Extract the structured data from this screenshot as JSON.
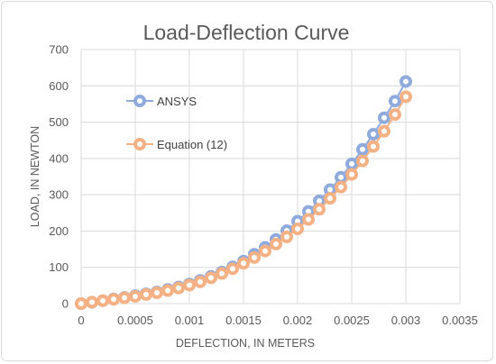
{
  "chart_data": {
    "type": "line",
    "title": "Load-Deflection Curve",
    "xlabel": "DEFLECTION, IN METERS",
    "ylabel": "LOAD, IN NEWTON",
    "xlim": [
      0,
      0.0035
    ],
    "ylim": [
      0,
      700
    ],
    "xticks": [
      "0",
      "0.0005",
      "0.001",
      "0.0015",
      "0.002",
      "0.0025",
      "0.003",
      "0.0035"
    ],
    "yticks": [
      "0",
      "100",
      "200",
      "300",
      "400",
      "500",
      "600",
      "700"
    ],
    "grid": true,
    "legend": "left",
    "x": [
      0,
      0.0001,
      0.0002,
      0.0003,
      0.0004,
      0.0005,
      0.0006,
      0.0007,
      0.0008,
      0.0009,
      0.001,
      0.0011,
      0.0012,
      0.0013,
      0.0014,
      0.0015,
      0.0016,
      0.0017,
      0.0018,
      0.0019,
      0.002,
      0.0021,
      0.0022,
      0.0023,
      0.0024,
      0.0025,
      0.0026,
      0.0027,
      0.0028,
      0.0029,
      0.003
    ],
    "series": [
      {
        "name": "ANSYS",
        "color": "#8faadc",
        "values": [
          0,
          4,
          8,
          13,
          17,
          22,
          27,
          32,
          39,
          46,
          54,
          64,
          75,
          87,
          101,
          117,
          136,
          155,
          177,
          201,
          227,
          254,
          283,
          314,
          348,
          385,
          425,
          467,
          512,
          558,
          612
        ]
      },
      {
        "name": "Equation (12)",
        "color": "#f4b183",
        "values": [
          0,
          4,
          8,
          12,
          16,
          20,
          25,
          30,
          36,
          43,
          51,
          60,
          71,
          83,
          96,
          111,
          127,
          145,
          164,
          184,
          206,
          232,
          260,
          290,
          321,
          356,
          393,
          433,
          475,
          521,
          570
        ]
      }
    ]
  }
}
